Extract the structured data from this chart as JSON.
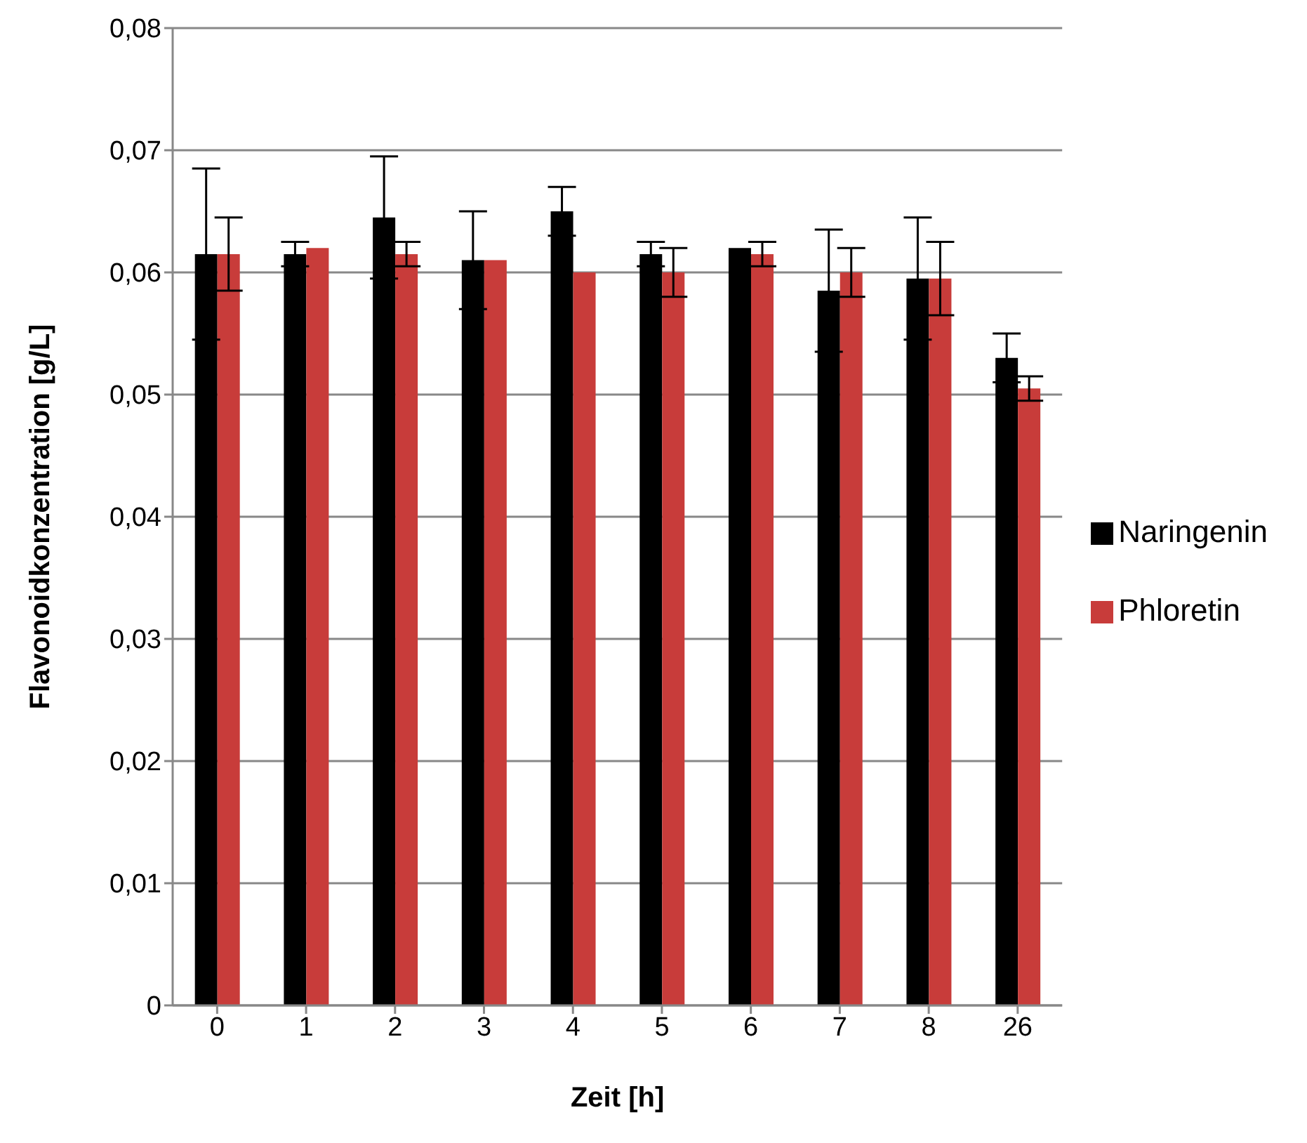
{
  "chart_data": {
    "type": "bar",
    "xlabel": "Zeit [h]",
    "ylabel": "Flavonoidkonzentration [g/L]",
    "categories": [
      "0",
      "1",
      "2",
      "3",
      "4",
      "5",
      "6",
      "7",
      "8",
      "26"
    ],
    "series": [
      {
        "name": "Naringenin",
        "color": "#000000",
        "values": [
          0.0615,
          0.0615,
          0.0645,
          0.061,
          0.065,
          0.0615,
          0.062,
          0.0585,
          0.0595,
          0.053
        ],
        "errors": [
          0.007,
          0.001,
          0.005,
          0.004,
          0.002,
          0.001,
          0,
          0.005,
          0.005,
          0.002
        ]
      },
      {
        "name": "Phloretin",
        "color": "#c83c3a",
        "values": [
          0.0615,
          0.062,
          0.0615,
          0.061,
          0.06,
          0.06,
          0.0615,
          0.06,
          0.0595,
          0.0505
        ],
        "errors": [
          0.003,
          0,
          0.001,
          0,
          0,
          0.002,
          0.001,
          0.002,
          0.003,
          0.001
        ]
      }
    ],
    "ylim": [
      0,
      0.08
    ],
    "yticks": [
      0,
      {
        "value": 0.01,
        "label": "0,01"
      },
      {
        "value": 0.02,
        "label": "0,02"
      },
      {
        "value": 0.03,
        "label": "0,03"
      },
      {
        "value": 0.04,
        "label": "0,04"
      },
      {
        "value": 0.05,
        "label": "0,05"
      },
      {
        "value": 0.06,
        "label": "0,06"
      },
      {
        "value": 0.07,
        "label": "0,07"
      },
      {
        "value": 0.08,
        "label": "0,08"
      }
    ],
    "grid": "y",
    "legend": "right"
  }
}
